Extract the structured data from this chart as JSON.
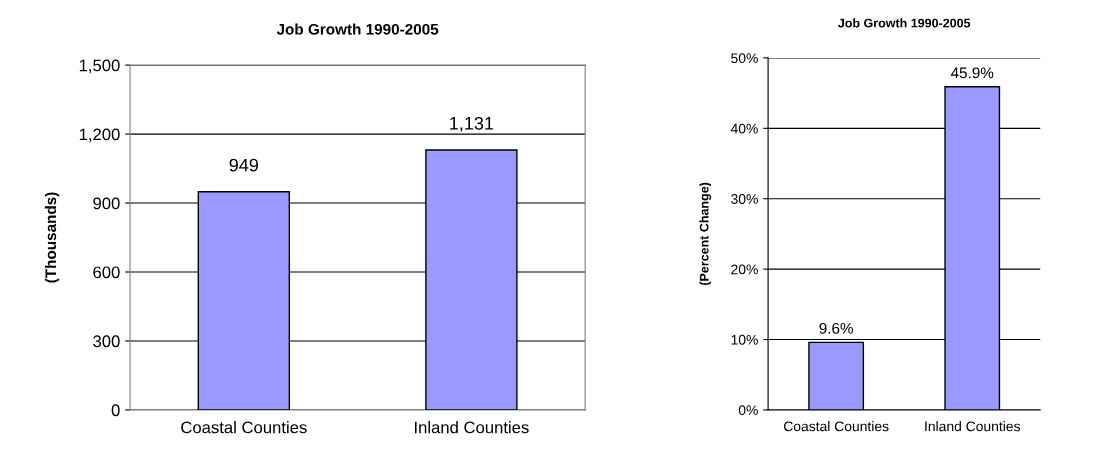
{
  "chart_data": [
    {
      "type": "bar",
      "title": "Job Growth 1990-2005",
      "ylabel": "(Thousands)",
      "categories": [
        "Coastal Counties",
        "Inland Counties"
      ],
      "values": [
        949,
        1131
      ],
      "value_labels": [
        "949",
        "1,131"
      ],
      "color": "#9999ff",
      "ylim": [
        0,
        1500
      ],
      "yticks": [
        0,
        300,
        600,
        900,
        {
          "value": 1200,
          "label": "1,200"
        },
        {
          "value": 1500,
          "label": "1,500"
        }
      ],
      "grid": "y",
      "legend": false
    },
    {
      "type": "bar",
      "title": "Job Growth 1990-2005",
      "ylabel": "(Percent Change)",
      "categories": [
        "Coastal Counties",
        "Inland Counties"
      ],
      "values": [
        9.6,
        45.9
      ],
      "value_labels": [
        "9.6%",
        "45.9%"
      ],
      "color": "#9999ff",
      "ylim": [
        0,
        50
      ],
      "yticks": [
        {
          "value": 0,
          "label": "0%"
        },
        {
          "value": 10,
          "label": "10%"
        },
        {
          "value": 20,
          "label": "20%"
        },
        {
          "value": 30,
          "label": "30%"
        },
        {
          "value": 40,
          "label": "40%"
        },
        {
          "value": 50,
          "label": "50%"
        }
      ],
      "grid": "y",
      "legend": false
    }
  ]
}
